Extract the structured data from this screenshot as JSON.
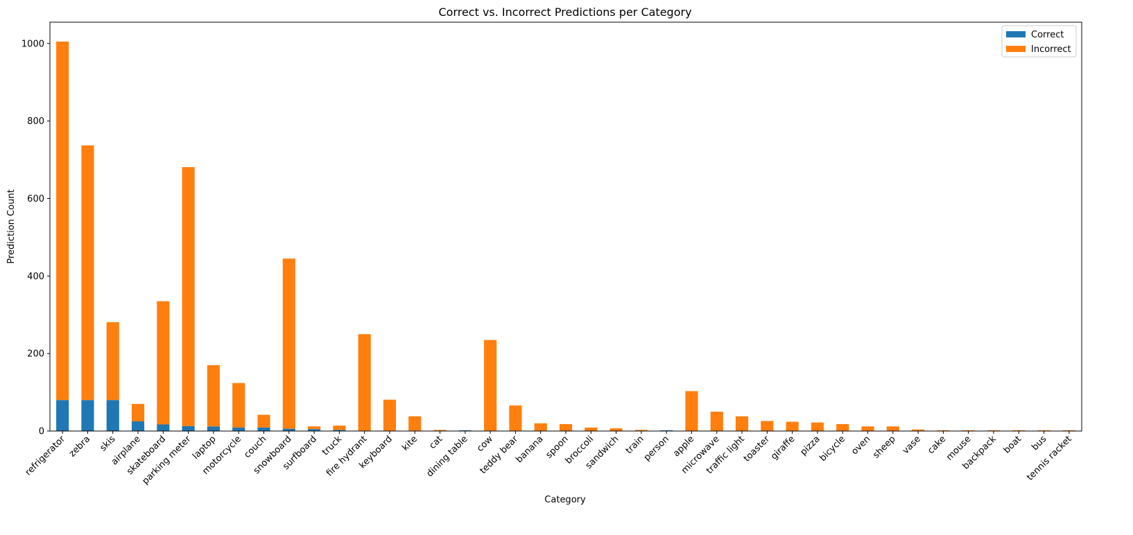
{
  "chart_data": {
    "type": "bar",
    "stacked": true,
    "title": "Correct vs. Incorrect Predictions per Category",
    "xlabel": "Category",
    "ylabel": "Prediction Count",
    "ylim": [
      0,
      1055
    ],
    "yticks": [
      0,
      200,
      400,
      600,
      800,
      1000
    ],
    "grid": false,
    "legend_position": "top-right",
    "categories": [
      "refrigerator",
      "zebra",
      "skis",
      "airplane",
      "skateboard",
      "parking meter",
      "laptop",
      "motorcycle",
      "couch",
      "snowboard",
      "surfboard",
      "truck",
      "fire hydrant",
      "keyboard",
      "kite",
      "cat",
      "dining table",
      "cow",
      "teddy bear",
      "banana",
      "spoon",
      "broccoli",
      "sandwich",
      "train",
      "person",
      "apple",
      "microwave",
      "traffic light",
      "toaster",
      "giraffe",
      "pizza",
      "bicycle",
      "oven",
      "sheep",
      "vase",
      "cake",
      "mouse",
      "backpack",
      "boat",
      "bus",
      "tennis racket"
    ],
    "series": [
      {
        "name": "Correct",
        "color": "#1f77b4",
        "values": [
          80,
          80,
          80,
          25,
          17,
          13,
          12,
          9,
          9,
          6,
          5,
          3,
          1,
          1,
          1,
          1,
          2,
          1,
          1,
          0,
          0,
          0,
          0,
          1,
          2,
          0,
          0,
          0,
          0,
          0,
          0,
          0,
          0,
          0,
          0,
          0,
          0,
          0,
          0,
          0,
          0
        ]
      },
      {
        "name": "Incorrect",
        "color": "#ff7f0e",
        "values": [
          925,
          657,
          201,
          45,
          318,
          668,
          158,
          115,
          33,
          439,
          7,
          11,
          249,
          80,
          37,
          2,
          0,
          234,
          65,
          20,
          18,
          9,
          7,
          2,
          0,
          103,
          50,
          38,
          26,
          24,
          22,
          18,
          12,
          12,
          4,
          2,
          2,
          2,
          2,
          2,
          2
        ]
      }
    ]
  }
}
